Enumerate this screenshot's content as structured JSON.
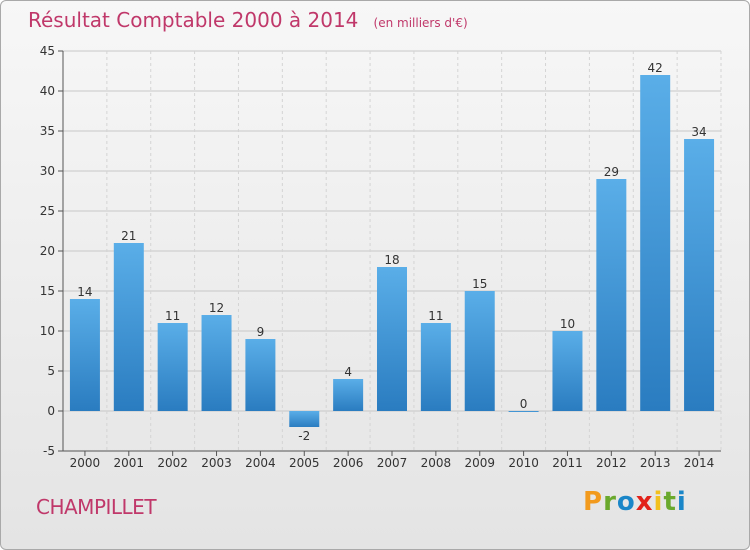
{
  "header": {
    "title": "Résultat Comptable 2000 à 2014",
    "unit": "(en milliers d'€)"
  },
  "footer": {
    "town": "CHAMPILLET",
    "logo_letters": [
      "P",
      "r",
      "o",
      "x",
      "i",
      "t",
      "i"
    ],
    "logo_colors": [
      "#f29a1d",
      "#6aa92d",
      "#1a86c8",
      "#e2221a",
      "#f2c01d",
      "#6aa92d",
      "#1a86c8"
    ]
  },
  "chart_data": {
    "type": "bar",
    "categories": [
      "2000",
      "2001",
      "2002",
      "2003",
      "2004",
      "2005",
      "2006",
      "2007",
      "2008",
      "2009",
      "2010",
      "2011",
      "2012",
      "2013",
      "2014"
    ],
    "values": [
      14,
      21,
      11,
      12,
      9,
      -2,
      4,
      18,
      11,
      15,
      0,
      10,
      29,
      42,
      34
    ],
    "ylim": [
      -5,
      45
    ],
    "yticks": [
      -5,
      0,
      5,
      10,
      15,
      20,
      25,
      30,
      35,
      40,
      45
    ],
    "grid": true,
    "bar_color_top": "#5aaee8",
    "bar_color_bottom": "#2a7cc0"
  }
}
